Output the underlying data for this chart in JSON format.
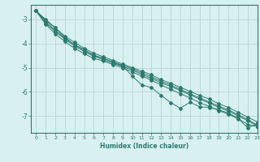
{
  "xlabel": "Humidex (Indice chaleur)",
  "background_color": "#d9f0f0",
  "grid_color": "#b0d0d0",
  "line_color": "#2d7a6e",
  "xlim": [
    -0.5,
    23
  ],
  "ylim": [
    -7.7,
    -2.4
  ],
  "yticks": [
    -7,
    -6,
    -5,
    -4,
    -3
  ],
  "xticks": [
    0,
    1,
    2,
    3,
    4,
    5,
    6,
    7,
    8,
    9,
    10,
    11,
    12,
    13,
    14,
    15,
    16,
    17,
    18,
    19,
    20,
    21,
    22,
    23
  ],
  "line1_x": [
    0,
    1,
    2,
    3,
    4,
    5,
    6,
    7,
    8,
    9,
    10,
    11,
    12,
    13,
    14,
    15,
    16,
    17,
    18,
    19,
    20,
    21,
    22,
    23
  ],
  "line1_y": [
    -2.65,
    -3.05,
    -3.35,
    -3.7,
    -3.95,
    -4.2,
    -4.4,
    -4.55,
    -4.7,
    -4.85,
    -5.0,
    -5.15,
    -5.3,
    -5.5,
    -5.65,
    -5.82,
    -5.98,
    -6.15,
    -6.3,
    -6.5,
    -6.65,
    -6.85,
    -7.05,
    -7.25
  ],
  "line2_x": [
    0,
    1,
    2,
    3,
    4,
    5,
    6,
    7,
    8,
    9,
    10,
    11,
    12,
    13,
    14,
    15,
    16,
    17,
    18,
    19,
    20,
    21,
    22,
    23
  ],
  "line2_y": [
    -2.65,
    -3.1,
    -3.45,
    -3.78,
    -4.05,
    -4.28,
    -4.48,
    -4.62,
    -4.76,
    -4.9,
    -5.05,
    -5.22,
    -5.38,
    -5.57,
    -5.72,
    -5.9,
    -6.08,
    -6.25,
    -6.42,
    -6.6,
    -6.75,
    -6.95,
    -7.15,
    -7.38
  ],
  "line3_x": [
    0,
    1,
    2,
    3,
    4,
    5,
    6,
    7,
    8,
    9,
    10,
    11,
    12,
    13,
    14,
    15,
    16,
    17,
    18,
    19,
    20,
    21,
    22,
    23
  ],
  "line3_y": [
    -2.65,
    -3.15,
    -3.5,
    -3.82,
    -4.1,
    -4.33,
    -4.53,
    -4.67,
    -4.82,
    -4.95,
    -5.1,
    -5.28,
    -5.45,
    -5.63,
    -5.78,
    -5.95,
    -6.13,
    -6.3,
    -6.47,
    -6.65,
    -6.8,
    -7.0,
    -7.2,
    -7.42
  ],
  "line4_x": [
    0,
    1,
    2,
    3,
    4,
    5,
    6,
    7,
    8,
    9,
    10,
    11,
    12,
    13,
    14,
    15,
    16,
    17,
    18,
    19,
    20,
    21,
    22,
    23
  ],
  "line4_y": [
    -2.65,
    -3.2,
    -3.6,
    -3.92,
    -4.2,
    -4.42,
    -4.62,
    -4.72,
    -4.88,
    -5.0,
    -5.18,
    -5.35,
    -5.52,
    -5.72,
    -5.9,
    -6.08,
    -6.25,
    -6.45,
    -6.6,
    -6.78,
    -6.93,
    -7.12,
    -7.35,
    -7.45
  ],
  "zigzag_x": [
    0,
    1,
    2,
    3,
    4,
    5,
    6,
    7,
    8,
    9,
    10,
    11,
    12,
    13,
    14,
    15,
    16,
    17,
    18,
    19,
    20,
    21,
    22,
    23
  ],
  "zigzag_y": [
    -2.65,
    -3.0,
    -3.35,
    -3.75,
    -4.05,
    -4.25,
    -4.5,
    -4.6,
    -4.78,
    -4.93,
    -5.35,
    -5.72,
    -5.82,
    -6.15,
    -6.45,
    -6.68,
    -6.43,
    -6.62,
    -6.65,
    -6.75,
    -6.88,
    -7.1,
    -7.5,
    -7.32
  ]
}
